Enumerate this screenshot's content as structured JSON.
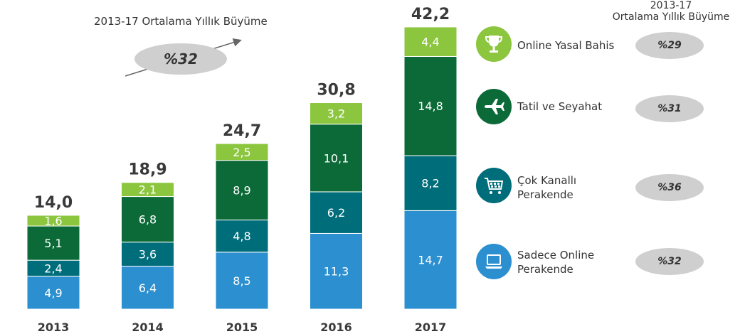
{
  "chart_data": {
    "type": "bar",
    "stacked": true,
    "categories": [
      "2013",
      "2014",
      "2015",
      "2016",
      "2017"
    ],
    "series": [
      {
        "name": "Sadece Online Perakende",
        "color": "#2b8fd0",
        "values": [
          4.9,
          6.4,
          8.5,
          11.3,
          14.7
        ]
      },
      {
        "name": "Çok Kanallı Perakende",
        "color": "#006d7a",
        "values": [
          2.4,
          3.6,
          4.8,
          6.2,
          8.2
        ]
      },
      {
        "name": "Tatil ve Seyahat",
        "color": "#0b6a37",
        "values": [
          5.1,
          6.8,
          8.9,
          10.1,
          14.8
        ]
      },
      {
        "name": "Online Yasal Bahis",
        "color": "#8cc63f",
        "values": [
          1.6,
          2.1,
          2.5,
          3.2,
          4.4
        ]
      }
    ],
    "segment_labels": [
      [
        "4,9",
        "6,4",
        "8,5",
        "11,3",
        "14,7"
      ],
      [
        "2,4",
        "3,6",
        "4,8",
        "6,2",
        "8,2"
      ],
      [
        "5,1",
        "6,8",
        "8,9",
        "10,1",
        "14,8"
      ],
      [
        "1,6",
        "2,1",
        "2,5",
        "3,2",
        "4,4"
      ]
    ],
    "totals": [
      14.0,
      18.9,
      24.7,
      30.8,
      42.2
    ],
    "total_labels": [
      "14,0",
      "18,9",
      "24,7",
      "30,8",
      "42,2"
    ],
    "ylim": [
      0,
      42.2
    ],
    "grid": false
  },
  "growth": {
    "title": "2013-17 Ortalama Yıllık Büyüme",
    "value": "%32"
  },
  "legend": {
    "header_line1": "2013-17",
    "header_line2": "Ortalama Yıllık Büyüme",
    "items": [
      {
        "lines": [
          "Online Yasal Bahis"
        ],
        "growth": "%29",
        "icon": "trophy-icon",
        "color": "#8cc63f"
      },
      {
        "lines": [
          "Tatil ve Seyahat"
        ],
        "growth": "%31",
        "icon": "airplane-icon",
        "color": "#0b6a37"
      },
      {
        "lines": [
          "Çok Kanallı",
          "Perakende"
        ],
        "growth": "%36",
        "icon": "shopping-cart-icon",
        "color": "#006d7a"
      },
      {
        "lines": [
          "Sadece Online",
          "Perakende"
        ],
        "growth": "%32",
        "icon": "laptop-icon",
        "color": "#2b8fd0"
      }
    ]
  }
}
